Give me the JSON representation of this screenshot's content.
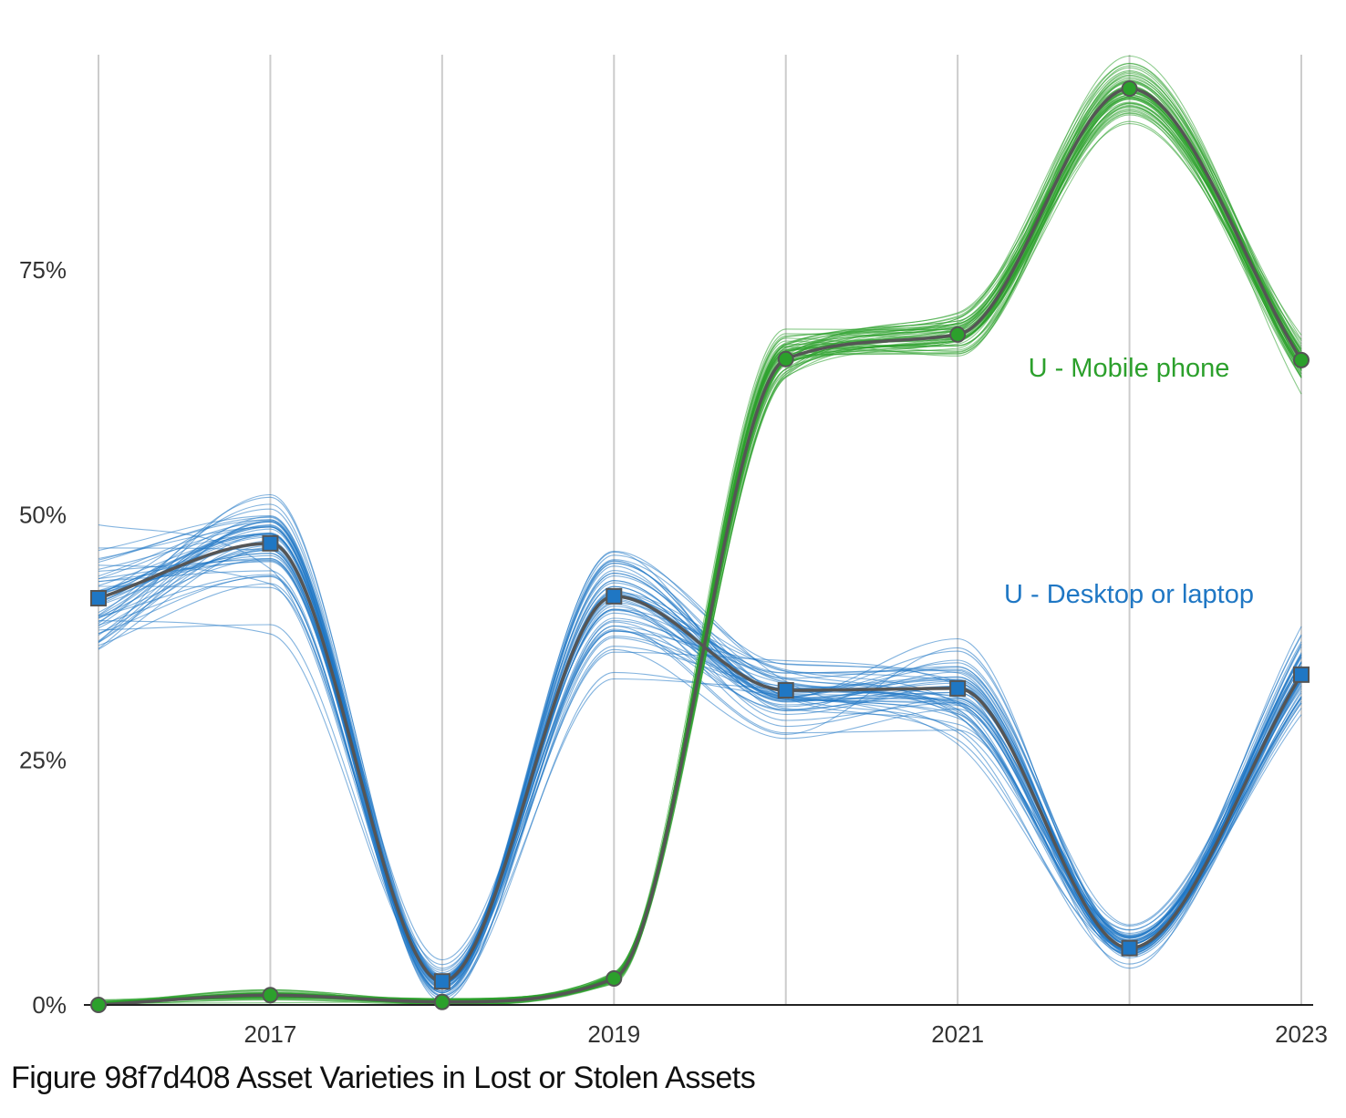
{
  "caption": "Figure 98f7d408 Asset Varieties in Lost or Stolen Assets",
  "chart_data": {
    "type": "line",
    "title": "Figure 98f7d408 Asset Varieties in Lost or Stolen Assets",
    "xlabel": "",
    "ylabel": "",
    "x": [
      2016,
      2017,
      2018,
      2019,
      2020,
      2021,
      2022,
      2023
    ],
    "x_tick_values": [
      2017,
      2019,
      2021,
      2023
    ],
    "x_tick_labels": [
      "2017",
      "2019",
      "2021",
      "2023"
    ],
    "xlim": [
      2016,
      2023
    ],
    "y_tick_values": [
      0,
      0.25,
      0.5,
      0.75
    ],
    "y_tick_labels": [
      "0%",
      "25%",
      "50%",
      "75%"
    ],
    "ylim": [
      0,
      0.96
    ],
    "grid": "vertical",
    "series": [
      {
        "name": "U - Desktop or laptop",
        "color": "#1f77c4",
        "marker": "square",
        "values": [
          0.415,
          0.471,
          0.024,
          0.417,
          0.321,
          0.323,
          0.058,
          0.337
        ]
      },
      {
        "name": "U - Mobile phone",
        "color": "#2ca02c",
        "marker": "circle",
        "values": [
          0.0,
          0.01,
          0.003,
          0.027,
          0.659,
          0.684,
          0.935,
          0.658
        ]
      }
    ]
  },
  "colors": {
    "median_line": "#555555",
    "grid": "#cccccc",
    "axis": "#222222"
  }
}
